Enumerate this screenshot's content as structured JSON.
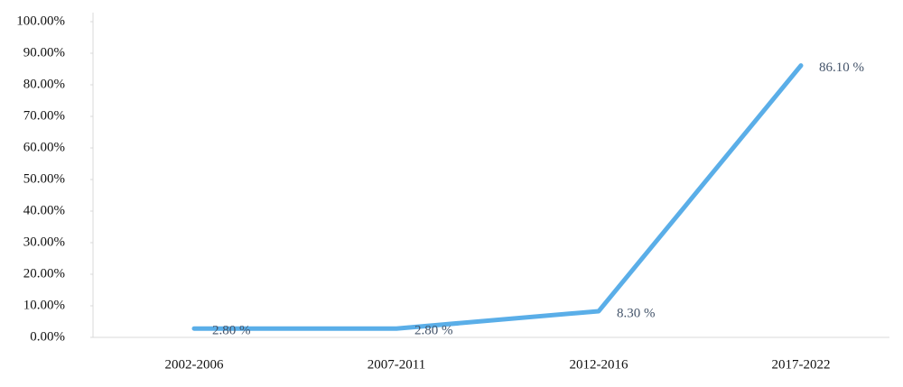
{
  "chart_data": {
    "type": "line",
    "categories": [
      "2002-2006",
      "2007-2011",
      "2012-2016",
      "2017-2022"
    ],
    "values": [
      2.8,
      2.8,
      8.3,
      86.1
    ],
    "value_labels": [
      "2.80 %",
      "2.80 %",
      "8.30 %",
      "86.10 %"
    ],
    "color": "#5aaee8",
    "ylim": [
      0,
      100
    ],
    "yticks": [
      {
        "value": 0,
        "label": "0.00%"
      },
      {
        "value": 10,
        "label": "10.00%"
      },
      {
        "value": 20,
        "label": "20.00%"
      },
      {
        "value": 30,
        "label": "30.00%"
      },
      {
        "value": 40,
        "label": "40.00%"
      },
      {
        "value": 50,
        "label": "50.00%"
      },
      {
        "value": 60,
        "label": "60.00%"
      },
      {
        "value": 70,
        "label": "70.00%"
      },
      {
        "value": 80,
        "label": "80.00%"
      },
      {
        "value": 90,
        "label": "90.00%"
      },
      {
        "value": 100,
        "label": "100.00%"
      }
    ],
    "grid": false
  }
}
